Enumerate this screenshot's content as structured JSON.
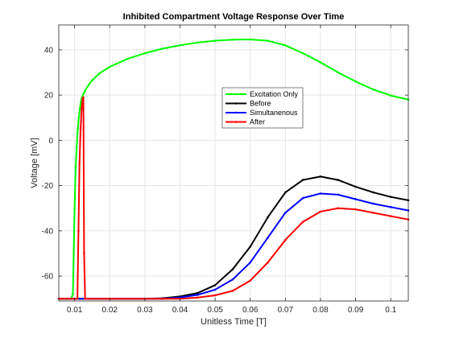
{
  "chart_data": {
    "type": "line",
    "title": "Inhibited Compartment Voltage Response Over Time",
    "xlabel": "Unitless Time [T]",
    "ylabel": "Voltage [mV]",
    "xlim": [
      0.0055,
      0.105
    ],
    "ylim": [
      -71,
      51
    ],
    "xticks": [
      0.01,
      0.02,
      0.03,
      0.04,
      0.05,
      0.06,
      0.07,
      0.08,
      0.09,
      0.1
    ],
    "xtick_labels": [
      "0.01",
      "0.02",
      "0.03",
      "0.04",
      "0.05",
      "0.06",
      "0.07",
      "0.08",
      "0.09",
      "0.1"
    ],
    "yticks": [
      -60,
      -40,
      -20,
      0,
      20,
      40
    ],
    "ytick_labels": [
      "-60",
      "-40",
      "-20",
      "0",
      "20",
      "40"
    ],
    "grid": true,
    "legend_position": "center-right",
    "series": [
      {
        "name": "Excitation Only",
        "color": "#00ff00",
        "x": [
          0.0055,
          0.009,
          0.0095,
          0.01,
          0.0103,
          0.0106,
          0.0109,
          0.0112,
          0.0115,
          0.0118,
          0.012,
          0.0125,
          0.013,
          0.014,
          0.015,
          0.017,
          0.02,
          0.025,
          0.03,
          0.035,
          0.04,
          0.045,
          0.05,
          0.055,
          0.06,
          0.065,
          0.07,
          0.075,
          0.08,
          0.085,
          0.09,
          0.095,
          0.1,
          0.105
        ],
        "y": [
          -70,
          -70,
          -68,
          -30,
          -12,
          -3,
          5,
          10,
          14,
          17,
          18.5,
          20.5,
          22,
          24.5,
          26.5,
          29.5,
          32.5,
          36,
          38.5,
          40.5,
          42,
          43.2,
          44,
          44.5,
          44.6,
          44,
          42,
          38.5,
          34.5,
          30,
          26,
          22.5,
          19.8,
          18
        ]
      },
      {
        "name": "Before",
        "color": "#000000",
        "x": [
          0.0055,
          0.01,
          0.02,
          0.03,
          0.035,
          0.04,
          0.045,
          0.05,
          0.055,
          0.06,
          0.065,
          0.07,
          0.075,
          0.08,
          0.085,
          0.09,
          0.095,
          0.1,
          0.105
        ],
        "y": [
          -70,
          -70,
          -70,
          -70,
          -69.8,
          -69,
          -67.5,
          -64,
          -57,
          -47,
          -34,
          -23,
          -17.5,
          -16,
          -17.5,
          -20.5,
          -23,
          -25,
          -26.5
        ]
      },
      {
        "name": "Simultanenous",
        "color": "#0000ff",
        "x": [
          0.0055,
          0.01,
          0.02,
          0.03,
          0.035,
          0.04,
          0.045,
          0.05,
          0.055,
          0.06,
          0.065,
          0.07,
          0.075,
          0.08,
          0.085,
          0.09,
          0.095,
          0.1,
          0.105
        ],
        "y": [
          -70,
          -70,
          -70,
          -70,
          -70,
          -69.5,
          -68.3,
          -66,
          -61.5,
          -54,
          -43,
          -32,
          -25.5,
          -23.5,
          -24,
          -26,
          -28,
          -29.5,
          -31
        ]
      },
      {
        "name": "After",
        "color": "#ff0000",
        "x": [
          0.0055,
          0.0108,
          0.0111,
          0.0114,
          0.0117,
          0.012,
          0.0123,
          0.0125,
          0.0127,
          0.013,
          0.02,
          0.03,
          0.04,
          0.045,
          0.05,
          0.055,
          0.06,
          0.065,
          0.07,
          0.075,
          0.08,
          0.085,
          0.09,
          0.095,
          0.1,
          0.105
        ],
        "y": [
          -70,
          -70,
          -40,
          -10,
          5,
          14,
          18.5,
          19,
          -50,
          -70,
          -70,
          -70,
          -70,
          -69.5,
          -68.5,
          -66.5,
          -62,
          -54,
          -44,
          -36,
          -31.5,
          -30,
          -30.5,
          -32,
          -33.5,
          -35
        ]
      }
    ]
  }
}
